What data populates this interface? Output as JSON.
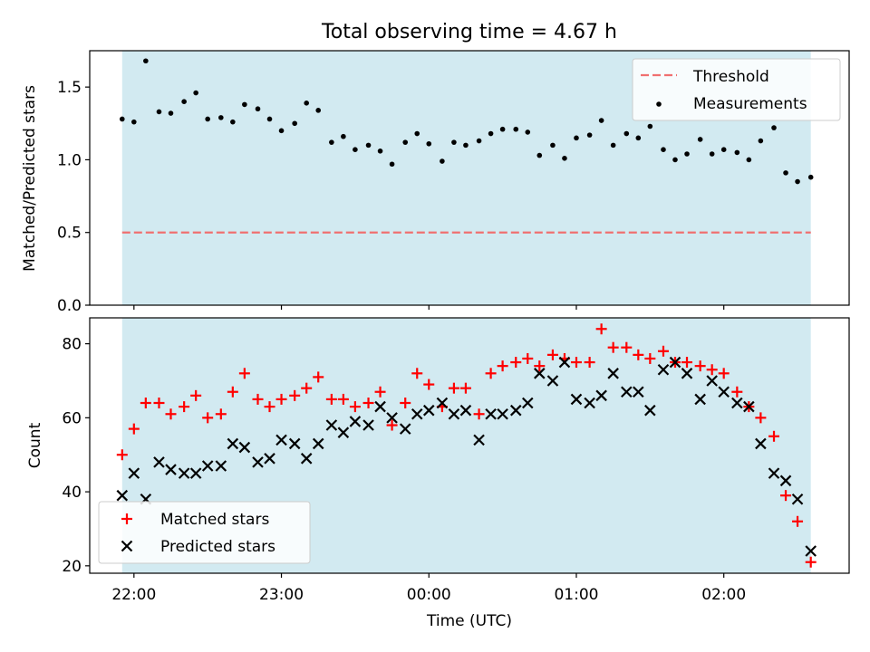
{
  "title": "Total observing time = 4.67 h",
  "chart_data": [
    {
      "type": "scatter",
      "panel": "top",
      "title": "Total observing time = 4.67 h",
      "xlabel": "",
      "ylabel": "Matched/Predicted stars",
      "ylim": [
        0.0,
        1.75
      ],
      "yticks": [
        0.0,
        0.5,
        1.0,
        1.5
      ],
      "ytick_labels": [
        "0.0",
        "0.5",
        "1.0",
        "1.5"
      ],
      "xlim_hours": [
        21.7,
        26.85
      ],
      "shaded_span_hours": [
        21.92,
        26.59
      ],
      "shade_color": "#add8e6",
      "legend_position": "upper right",
      "threshold": {
        "name": "Threshold",
        "value": 0.5,
        "color": "#f07070",
        "style": "dashed"
      },
      "series": [
        {
          "name": "Measurements",
          "color": "#000000",
          "marker": "dot",
          "x_hours": [
            21.92,
            22.0,
            22.08,
            22.17,
            22.25,
            22.34,
            22.42,
            22.5,
            22.59,
            22.67,
            22.75,
            22.84,
            22.92,
            23.0,
            23.09,
            23.17,
            23.25,
            23.34,
            23.42,
            23.5,
            23.59,
            23.67,
            23.75,
            23.84,
            23.92,
            24.0,
            24.09,
            24.17,
            24.25,
            24.34,
            24.42,
            24.5,
            24.59,
            24.67,
            24.75,
            24.84,
            24.92,
            25.0,
            25.09,
            25.17,
            25.25,
            25.34,
            25.42,
            25.5,
            25.59,
            25.67,
            25.75,
            25.84,
            25.92,
            26.0,
            26.09,
            26.17,
            26.25,
            26.34,
            26.42,
            26.5,
            26.59
          ],
          "y": [
            1.28,
            1.26,
            1.68,
            1.33,
            1.32,
            1.4,
            1.46,
            1.28,
            1.29,
            1.26,
            1.38,
            1.35,
            1.28,
            1.2,
            1.25,
            1.39,
            1.34,
            1.12,
            1.16,
            1.07,
            1.1,
            1.06,
            0.97,
            1.12,
            1.18,
            1.11,
            0.99,
            1.12,
            1.1,
            1.13,
            1.18,
            1.21,
            1.21,
            1.19,
            1.03,
            1.1,
            1.01,
            1.15,
            1.17,
            1.27,
            1.1,
            1.18,
            1.15,
            1.23,
            1.07,
            1.0,
            1.04,
            1.14,
            1.04,
            1.07,
            1.05,
            1.0,
            1.13,
            1.22,
            0.91,
            0.85,
            0.88
          ]
        }
      ]
    },
    {
      "type": "scatter",
      "panel": "bottom",
      "title": "",
      "xlabel": "Time (UTC)",
      "ylabel": "Count",
      "ylim": [
        18,
        87
      ],
      "yticks": [
        20,
        40,
        60,
        80
      ],
      "ytick_labels": [
        "20",
        "40",
        "60",
        "80"
      ],
      "xlim_hours": [
        21.7,
        26.85
      ],
      "xticks_hours": [
        22,
        23,
        24,
        25,
        26
      ],
      "xtick_labels": [
        "22:00",
        "23:00",
        "00:00",
        "01:00",
        "02:00"
      ],
      "shaded_span_hours": [
        21.92,
        26.59
      ],
      "shade_color": "#add8e6",
      "legend_position": "lower left",
      "series": [
        {
          "name": "Matched stars",
          "color": "#ff0000",
          "marker": "plus",
          "x_hours": [
            21.92,
            22.0,
            22.08,
            22.17,
            22.25,
            22.34,
            22.42,
            22.5,
            22.59,
            22.67,
            22.75,
            22.84,
            22.92,
            23.0,
            23.09,
            23.17,
            23.25,
            23.34,
            23.42,
            23.5,
            23.59,
            23.67,
            23.75,
            23.84,
            23.92,
            24.0,
            24.09,
            24.17,
            24.25,
            24.34,
            24.42,
            24.5,
            24.59,
            24.67,
            24.75,
            24.84,
            24.92,
            25.0,
            25.09,
            25.17,
            25.25,
            25.34,
            25.42,
            25.5,
            25.59,
            25.67,
            25.75,
            25.84,
            25.92,
            26.0,
            26.09,
            26.17,
            26.25,
            26.34,
            26.42,
            26.5,
            26.59
          ],
          "y": [
            50,
            57,
            64,
            64,
            61,
            63,
            66,
            60,
            61,
            67,
            72,
            65,
            63,
            65,
            66,
            68,
            71,
            65,
            65,
            63,
            64,
            67,
            58,
            64,
            72,
            69,
            63,
            68,
            68,
            61,
            72,
            74,
            75,
            76,
            74,
            77,
            76,
            75,
            75,
            84,
            79,
            79,
            77,
            76,
            78,
            75,
            75,
            74,
            73,
            72,
            67,
            63,
            60,
            55,
            39,
            32,
            21
          ]
        },
        {
          "name": "Predicted stars",
          "color": "#000000",
          "marker": "x",
          "x_hours": [
            21.92,
            22.0,
            22.08,
            22.17,
            22.25,
            22.34,
            22.42,
            22.5,
            22.59,
            22.67,
            22.75,
            22.84,
            22.92,
            23.0,
            23.09,
            23.17,
            23.25,
            23.34,
            23.42,
            23.5,
            23.59,
            23.67,
            23.75,
            23.84,
            23.92,
            24.0,
            24.09,
            24.17,
            24.25,
            24.34,
            24.42,
            24.5,
            24.59,
            24.67,
            24.75,
            24.84,
            24.92,
            25.0,
            25.09,
            25.17,
            25.25,
            25.34,
            25.42,
            25.5,
            25.59,
            25.67,
            25.75,
            25.84,
            25.92,
            26.0,
            26.09,
            26.17,
            26.25,
            26.34,
            26.42,
            26.5,
            26.59
          ],
          "y": [
            39,
            45,
            38,
            48,
            46,
            45,
            45,
            47,
            47,
            53,
            52,
            48,
            49,
            54,
            53,
            49,
            53,
            58,
            56,
            59,
            58,
            63,
            60,
            57,
            61,
            62,
            64,
            61,
            62,
            54,
            61,
            61,
            62,
            64,
            72,
            70,
            75,
            65,
            64,
            66,
            72,
            67,
            67,
            62,
            73,
            75,
            72,
            65,
            70,
            67,
            64,
            63,
            53,
            45,
            43,
            38,
            24
          ]
        }
      ]
    }
  ]
}
